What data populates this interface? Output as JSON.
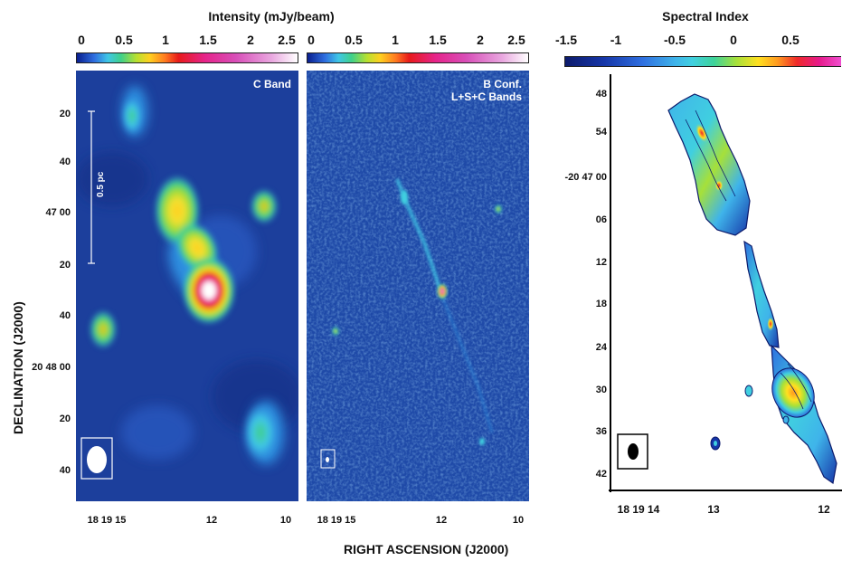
{
  "colorbar_left": {
    "title": "Intensity (mJy/beam)",
    "ticks_a": [
      "0",
      "0.5",
      "1",
      "1.5",
      "2",
      "2.5"
    ],
    "ticks_b": [
      "0",
      "0.5",
      "1",
      "1.5",
      "2",
      "2.5"
    ]
  },
  "colorbar_right": {
    "title": "Spectral Index",
    "ticks": [
      "-1.5",
      "-1",
      "-0.5",
      "0",
      "0.5"
    ]
  },
  "panel_a": {
    "label": "C Band",
    "scale_label": "0.5 pc",
    "yticks": [
      "20",
      "40",
      "47 00",
      "20",
      "40",
      "20 48 00",
      "20",
      "40"
    ],
    "xticks": [
      "18 19 15",
      "12",
      "10"
    ]
  },
  "panel_b": {
    "label_line1": "B Conf.",
    "label_line2": "L+S+C Bands",
    "xticks": [
      "18 19 15",
      "12",
      "10"
    ]
  },
  "panel_c": {
    "yticks": [
      "48",
      "54",
      "-20 47 00",
      "06",
      "12",
      "18",
      "24",
      "30",
      "36",
      "42"
    ],
    "xticks": [
      "18 19  14",
      "13",
      "12"
    ]
  },
  "axes": {
    "ylabel": "DECLINATION (J2000)",
    "xlabel": "RIGHT ASCENSION (J2000)"
  }
}
